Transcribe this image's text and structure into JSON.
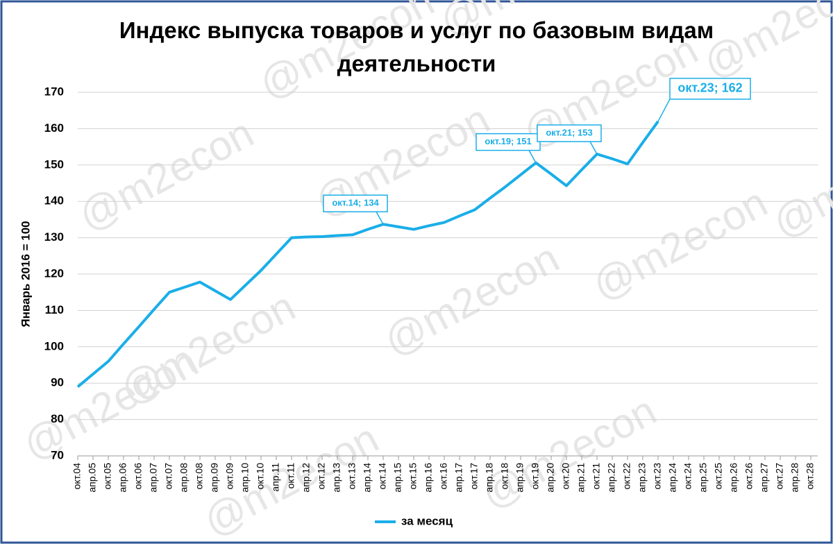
{
  "chart_data": {
    "type": "line",
    "title": "Индекс выпуска товаров и услуг по базовым видам деятельности",
    "ylabel": "Январь 2016 = 100",
    "watermark": "@m2econ",
    "categories": [
      "окт.04",
      "апр.05",
      "окт.05",
      "апр.06",
      "окт.06",
      "апр.07",
      "окт.07",
      "апр.08",
      "окт.08",
      "апр.09",
      "окт.09",
      "апр.10",
      "окт.10",
      "апр.11",
      "окт.11",
      "апр.12",
      "окт.12",
      "апр.13",
      "окт.13",
      "апр.14",
      "окт.14",
      "апр.15",
      "окт.15",
      "апр.16",
      "окт.16",
      "апр.17",
      "окт.17",
      "апр.18",
      "окт.18",
      "апр.19",
      "окт.19",
      "апр.20",
      "окт.20",
      "апр.21",
      "окт.21",
      "апр.22",
      "окт.22",
      "апр.23",
      "окт.23",
      "апр.24",
      "окт.24",
      "апр.25",
      "окт.25",
      "апр.26",
      "окт.26",
      "апр.27",
      "окт.27",
      "апр.28",
      "окт.28"
    ],
    "series": [
      {
        "name": "за месяц",
        "color": "#1aaee8",
        "values": [
          89,
          92.5,
          96,
          100.8,
          105.5,
          110.3,
          115,
          116.4,
          117.8,
          115.4,
          113,
          117,
          121,
          125.5,
          130,
          130.2,
          130.3,
          130.6,
          130.8,
          132.3,
          133.7,
          133,
          132.3,
          133.3,
          134.2,
          136,
          137.7,
          140.9,
          144,
          147.3,
          150.6,
          147.5,
          144.3,
          148.7,
          153,
          151.7,
          150.3,
          156.2,
          162,
          null,
          null,
          null,
          null,
          null,
          null,
          null,
          null,
          null,
          null
        ]
      }
    ],
    "annotations": [
      {
        "x": "окт.14",
        "text": "окт.14; 134"
      },
      {
        "x": "окт.19",
        "text": "окт.19; 151"
      },
      {
        "x": "окт.21",
        "text": "окт.21; 153"
      },
      {
        "x": "окт.23",
        "text": "окт.23; 162"
      }
    ],
    "ylim": [
      70,
      170
    ],
    "yticks": [
      70,
      80,
      90,
      100,
      110,
      120,
      130,
      140,
      150,
      160,
      170
    ],
    "grid": true,
    "legend": "bottom"
  }
}
